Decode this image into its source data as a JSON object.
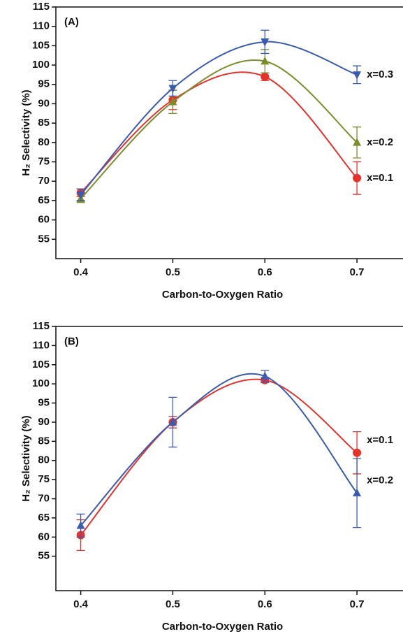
{
  "chart_data": [
    {
      "type": "line",
      "panel_label": "(A)",
      "xlabel": "Carbon-to-Oxygen Ratio",
      "ylabel": "H₂ Selectivity (%)",
      "x": [
        0.4,
        0.5,
        0.6,
        0.7
      ],
      "xlim": [
        0.373,
        0.75
      ],
      "xticks": [
        0.4,
        0.5,
        0.6,
        0.7
      ],
      "ylim": [
        50,
        115
      ],
      "yticks": [
        55,
        60,
        65,
        70,
        75,
        80,
        85,
        90,
        95,
        100,
        105,
        110,
        115
      ],
      "series": [
        {
          "name": "x=0.1",
          "color": "#e8312b",
          "marker": "circle",
          "values": [
            67,
            91,
            97,
            70.8
          ],
          "errors": [
            1,
            2.5,
            1,
            4.2
          ]
        },
        {
          "name": "x=0.2",
          "color": "#7f8c2a",
          "marker": "triangle-up",
          "values": [
            65.5,
            90.5,
            101,
            80
          ],
          "errors": [
            1,
            3,
            3,
            4
          ]
        },
        {
          "name": "x=0.3",
          "color": "#3a5bb0",
          "marker": "triangle-down",
          "values": [
            66.5,
            94,
            106,
            97.5
          ],
          "errors": [
            1.5,
            2,
            3,
            2.3
          ]
        }
      ]
    },
    {
      "type": "line",
      "panel_label": "(B)",
      "xlabel": "Carbon-to-Oxygen Ratio",
      "ylabel": "H₂ Selectivity (%)",
      "x": [
        0.4,
        0.5,
        0.6,
        0.7
      ],
      "xlim": [
        0.373,
        0.75
      ],
      "xticks": [
        0.4,
        0.5,
        0.6,
        0.7
      ],
      "ylim": [
        46,
        115
      ],
      "yticks": [
        55,
        60,
        65,
        70,
        75,
        80,
        85,
        90,
        95,
        100,
        105,
        110,
        115
      ],
      "series": [
        {
          "name": "x=0.1",
          "color": "#e8312b",
          "marker": "circle",
          "values": [
            60.5,
            90,
            101,
            82
          ],
          "errors": [
            4,
            1.5,
            0.7,
            5.5
          ]
        },
        {
          "name": "x=0.2",
          "color": "#3a5bb0",
          "marker": "triangle-up",
          "values": [
            63,
            90,
            102,
            71.5
          ],
          "errors": [
            3,
            6.5,
            1.5,
            9
          ]
        }
      ]
    }
  ]
}
